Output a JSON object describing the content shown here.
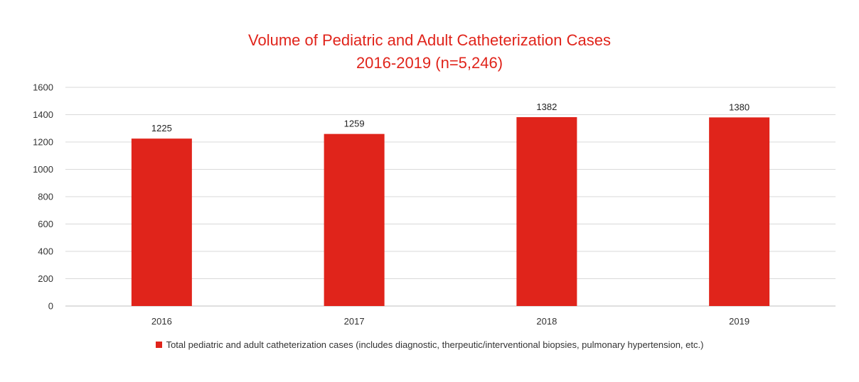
{
  "chart_data": {
    "type": "bar",
    "title": "Volume of Pediatric and Adult Catheterization Cases",
    "subtitle": "2016-2019 (n=5,246)",
    "categories": [
      "2016",
      "2017",
      "2018",
      "2019"
    ],
    "series": [
      {
        "name": "Total pediatric and adult catheterization cases (includes diagnostic, therpeutic/interventional biopsies, pulmonary hypertension, etc.)",
        "values": [
          1225,
          1259,
          1382,
          1380
        ],
        "color": "#e0241b"
      }
    ],
    "data_labels": [
      "1225",
      "1259",
      "1382",
      "1380"
    ],
    "y_ticks": [
      "0",
      "200",
      "400",
      "600",
      "800",
      "1000",
      "1200",
      "1400",
      "1600"
    ],
    "ylim": [
      0,
      1600
    ],
    "xlabel": "",
    "ylabel": "",
    "grid": true,
    "legend_position": "bottom"
  }
}
